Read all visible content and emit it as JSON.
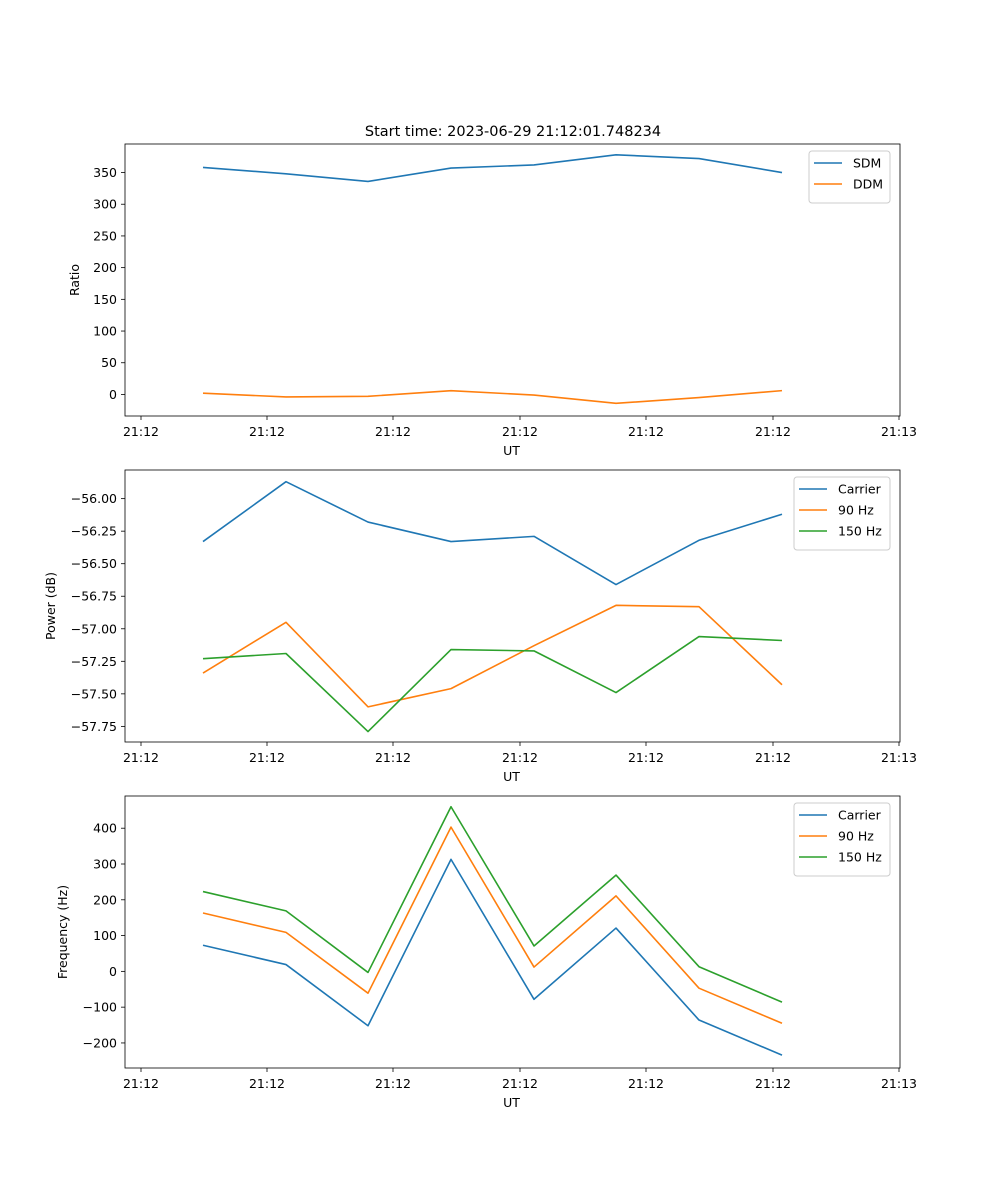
{
  "figure_title": "Start time: 2023-06-29 21:12:01.748234",
  "colors": {
    "blue": "#1f77b4",
    "orange": "#ff7f0e",
    "green": "#2ca02c"
  },
  "chart_data": [
    {
      "type": "line",
      "title": "Start time: 2023-06-29 21:12:01.748234",
      "xlabel": "UT",
      "ylabel": "Ratio",
      "x_tick_labels": [
        "21:12",
        "21:12",
        "21:12",
        "21:12",
        "21:12",
        "21:12",
        "21:13"
      ],
      "ylim": [
        -34,
        395
      ],
      "y_ticks": [
        0,
        50,
        100,
        150,
        200,
        250,
        300,
        350
      ],
      "legend_position": "top-right",
      "series": [
        {
          "name": "SDM",
          "color": "#1f77b4",
          "values": [
            358,
            348,
            336,
            357,
            362,
            378,
            372,
            350
          ]
        },
        {
          "name": "DDM",
          "color": "#ff7f0e",
          "values": [
            2,
            -4,
            -3,
            6,
            -1,
            -14,
            -5,
            6
          ]
        }
      ]
    },
    {
      "type": "line",
      "xlabel": "UT",
      "ylabel": "Power (dB)",
      "x_tick_labels": [
        "21:12",
        "21:12",
        "21:12",
        "21:12",
        "21:12",
        "21:12",
        "21:13"
      ],
      "ylim": [
        -57.87,
        -55.78
      ],
      "y_ticks": [
        -56.0,
        -56.25,
        -56.5,
        -56.75,
        -57.0,
        -57.25,
        -57.5,
        -57.75
      ],
      "y_tick_labels": [
        "−56.00",
        "−56.25",
        "−56.50",
        "−56.75",
        "−57.00",
        "−57.25",
        "−57.50",
        "−57.75"
      ],
      "legend_position": "top-right",
      "series": [
        {
          "name": "Carrier",
          "color": "#1f77b4",
          "values": [
            -56.33,
            -55.87,
            -56.18,
            -56.33,
            -56.29,
            -56.66,
            -56.32,
            -56.12
          ]
        },
        {
          "name": "90 Hz",
          "color": "#ff7f0e",
          "values": [
            -57.34,
            -56.95,
            -57.6,
            -57.46,
            -57.13,
            -56.82,
            -56.83,
            -57.43
          ]
        },
        {
          "name": "150 Hz",
          "color": "#2ca02c",
          "values": [
            -57.23,
            -57.19,
            -57.79,
            -57.16,
            -57.17,
            -57.49,
            -57.06,
            -57.09
          ]
        }
      ]
    },
    {
      "type": "line",
      "xlabel": "UT",
      "ylabel": "Frequency (Hz)",
      "x_tick_labels": [
        "21:12",
        "21:12",
        "21:12",
        "21:12",
        "21:12",
        "21:12",
        "21:13"
      ],
      "ylim": [
        -270,
        490
      ],
      "y_ticks": [
        -200,
        -100,
        0,
        100,
        200,
        300,
        400
      ],
      "y_tick_labels": [
        "−200",
        "−100",
        "0",
        "100",
        "200",
        "300",
        "400"
      ],
      "legend_position": "top-right",
      "series": [
        {
          "name": "Carrier",
          "color": "#1f77b4",
          "values": [
            73,
            19,
            -152,
            313,
            -78,
            121,
            -136,
            -234
          ]
        },
        {
          "name": "90 Hz",
          "color": "#ff7f0e",
          "values": [
            163,
            109,
            -61,
            403,
            12,
            211,
            -47,
            -145
          ]
        },
        {
          "name": "150 Hz",
          "color": "#2ca02c",
          "values": [
            223,
            169,
            -3,
            460,
            71,
            269,
            13,
            -86
          ]
        }
      ]
    }
  ]
}
